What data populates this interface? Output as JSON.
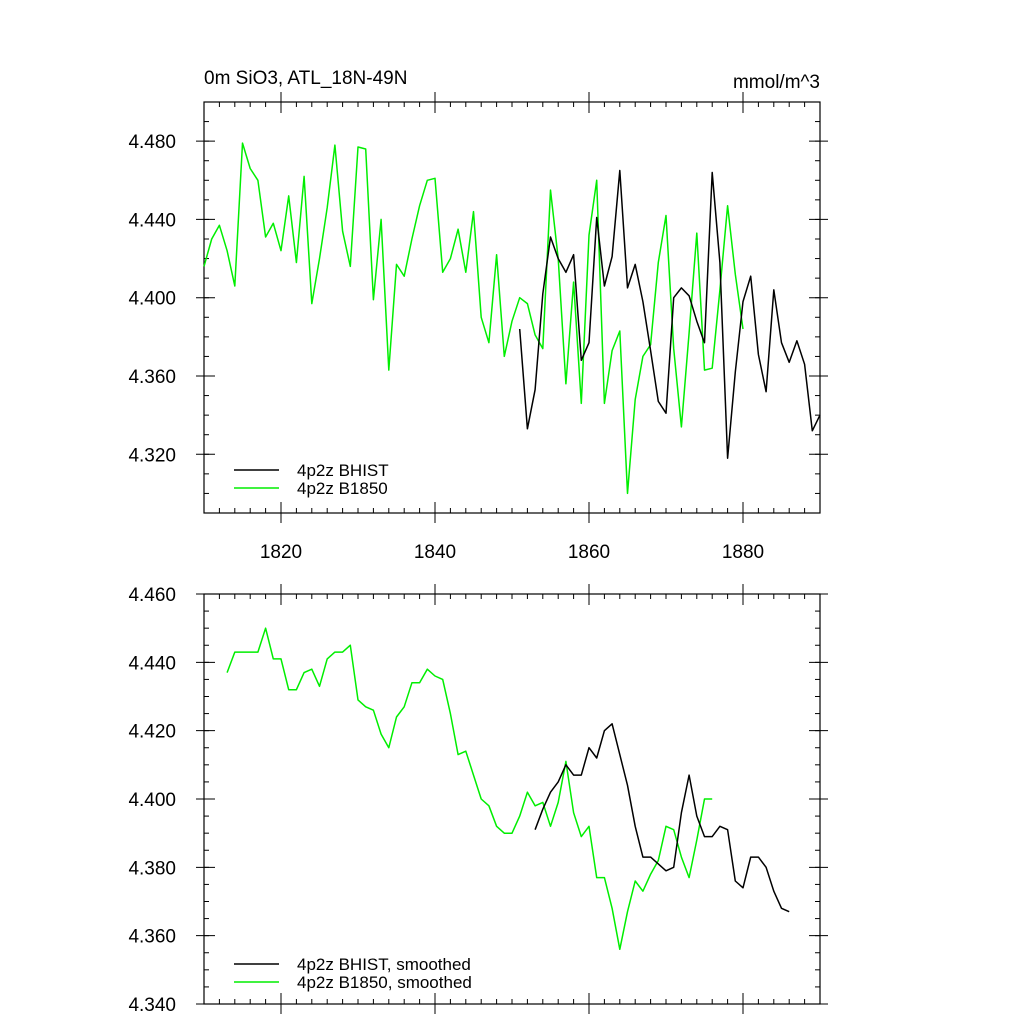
{
  "figure": {
    "title_left": "0m SiO3, ATL_18N-49N",
    "title_right": "mmol/m^3"
  },
  "colors": {
    "bhist": "#000000",
    "b1850": "#00ee00"
  },
  "chart_data": [
    {
      "type": "line",
      "panel": "top",
      "title": "0m SiO3, ATL_18N-49N",
      "units": "mmol/m^3",
      "xlim": [
        1810,
        1890
      ],
      "ylim": [
        4.29,
        4.5
      ],
      "x_ticks": [
        1820,
        1840,
        1860,
        1880
      ],
      "x_tick_labels": [
        "1820",
        "1840",
        "1860",
        "1880"
      ],
      "y_ticks": [
        4.32,
        4.36,
        4.4,
        4.44,
        4.48
      ],
      "y_tick_labels": [
        "4.320",
        "4.360",
        "4.400",
        "4.440",
        "4.480"
      ],
      "legend_position": "bottom-left",
      "series": [
        {
          "name": "4p2z BHIST",
          "color": "#000000",
          "x_start": 1851,
          "values": [
            4.384,
            4.333,
            4.353,
            4.402,
            4.431,
            4.42,
            4.413,
            4.422,
            4.368,
            4.377,
            4.441,
            4.406,
            4.421,
            4.465,
            4.405,
            4.417,
            4.398,
            4.373,
            4.347,
            4.341,
            4.4,
            4.405,
            4.401,
            4.388,
            4.377,
            4.464,
            4.418,
            4.318,
            4.362,
            4.398,
            4.411,
            4.371,
            4.352,
            4.404,
            4.377,
            4.367,
            4.378,
            4.366,
            4.332,
            4.34
          ]
        },
        {
          "name": "4p2z B1850",
          "color": "#00ee00",
          "x_start": 1810,
          "values": [
            4.416,
            4.43,
            4.437,
            4.424,
            4.406,
            4.479,
            4.466,
            4.46,
            4.431,
            4.438,
            4.424,
            4.452,
            4.418,
            4.462,
            4.397,
            4.42,
            4.446,
            4.478,
            4.434,
            4.416,
            4.477,
            4.476,
            4.399,
            4.44,
            4.363,
            4.417,
            4.411,
            4.43,
            4.447,
            4.46,
            4.461,
            4.413,
            4.42,
            4.435,
            4.413,
            4.444,
            4.39,
            4.377,
            4.422,
            4.37,
            4.388,
            4.4,
            4.397,
            4.381,
            4.374,
            4.455,
            4.42,
            4.356,
            4.408,
            4.346,
            4.432,
            4.46,
            4.346,
            4.373,
            4.383,
            4.3,
            4.348,
            4.37,
            4.376,
            4.418,
            4.442,
            4.374,
            4.334,
            4.382,
            4.433,
            4.363,
            4.364,
            4.404,
            4.447,
            4.412,
            4.384
          ]
        }
      ]
    },
    {
      "type": "line",
      "panel": "bottom",
      "xlim": [
        1810,
        1890
      ],
      "ylim": [
        4.34,
        4.46
      ],
      "x_ticks": [
        1820,
        1840,
        1860,
        1880
      ],
      "y_ticks": [
        4.34,
        4.36,
        4.38,
        4.4,
        4.42,
        4.44,
        4.46
      ],
      "y_tick_labels": [
        "4.340",
        "4.360",
        "4.380",
        "4.400",
        "4.420",
        "4.440",
        "4.460"
      ],
      "legend_position": "bottom-left",
      "series": [
        {
          "name": "4p2z BHIST, smoothed",
          "color": "#000000",
          "x_start": 1853,
          "values": [
            4.391,
            4.397,
            4.402,
            4.405,
            4.41,
            4.407,
            4.407,
            4.415,
            4.412,
            4.42,
            4.422,
            4.413,
            4.404,
            4.392,
            4.383,
            4.383,
            4.381,
            4.379,
            4.38,
            4.396,
            4.407,
            4.395,
            4.389,
            4.389,
            4.392,
            4.391,
            4.376,
            4.374,
            4.383,
            4.383,
            4.38,
            4.373,
            4.368,
            4.367
          ]
        },
        {
          "name": "4p2z B1850, smoothed",
          "color": "#00ee00",
          "x_start": 1813,
          "values": [
            4.437,
            4.443,
            4.443,
            4.443,
            4.443,
            4.45,
            4.441,
            4.441,
            4.432,
            4.432,
            4.437,
            4.438,
            4.433,
            4.441,
            4.443,
            4.443,
            4.445,
            4.429,
            4.427,
            4.426,
            4.419,
            4.415,
            4.424,
            4.427,
            4.434,
            4.434,
            4.438,
            4.436,
            4.435,
            4.425,
            4.413,
            4.414,
            4.407,
            4.4,
            4.398,
            4.392,
            4.39,
            4.39,
            4.395,
            4.402,
            4.398,
            4.399,
            4.392,
            4.399,
            4.411,
            4.396,
            4.389,
            4.392,
            4.377,
            4.377,
            4.368,
            4.356,
            4.367,
            4.376,
            4.373,
            4.378,
            4.382,
            4.392,
            4.391,
            4.383,
            4.377,
            4.388,
            4.4,
            4.4
          ]
        }
      ]
    }
  ]
}
